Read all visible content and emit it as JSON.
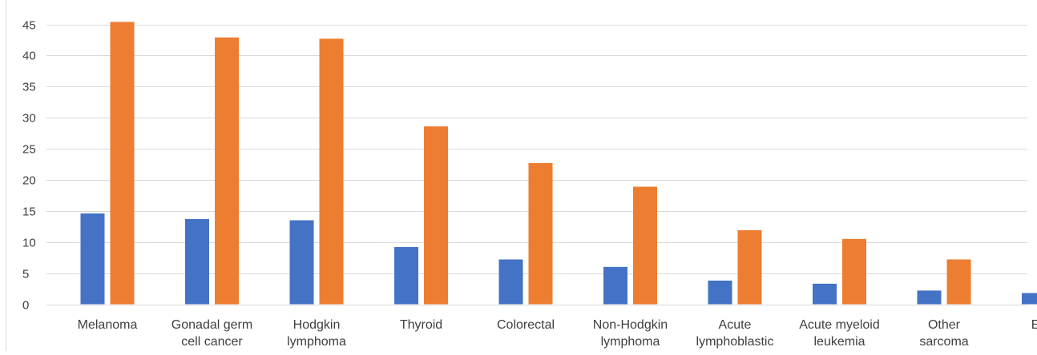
{
  "chart_data": {
    "type": "bar",
    "title": "",
    "xlabel": "",
    "ylabel": "",
    "ylim": [
      0,
      45
    ],
    "yticks": [
      0,
      5,
      10,
      15,
      20,
      25,
      30,
      35,
      40,
      45
    ],
    "grid": true,
    "legend": "none",
    "categories": [
      [
        "Melanoma"
      ],
      [
        "Gonadal germ",
        "cell cancer"
      ],
      [
        "Hodgkin",
        "lymphoma"
      ],
      [
        "Thyroid"
      ],
      [
        "Colorectal"
      ],
      [
        "Non-Hodgkin",
        "lymphoma"
      ],
      [
        "Acute",
        "lymphoblastic"
      ],
      [
        "Acute myeloid",
        "leukemia"
      ],
      [
        "Other",
        "sarcoma"
      ],
      [
        "Ewing"
      ]
    ],
    "series": [
      {
        "color": "#4472c4",
        "values": [
          14.6,
          13.7,
          13.5,
          9.2,
          7.2,
          6.0,
          3.8,
          3.3,
          2.2,
          1.8
        ]
      },
      {
        "color": "#ed7d31",
        "values": [
          45.4,
          42.9,
          42.7,
          28.6,
          22.7,
          18.9,
          11.9,
          10.5,
          7.2,
          null
        ]
      }
    ],
    "colors": {
      "axis": "#d9d9d9",
      "grid": "#d9d9d9",
      "text": "#3f3f3f"
    }
  }
}
